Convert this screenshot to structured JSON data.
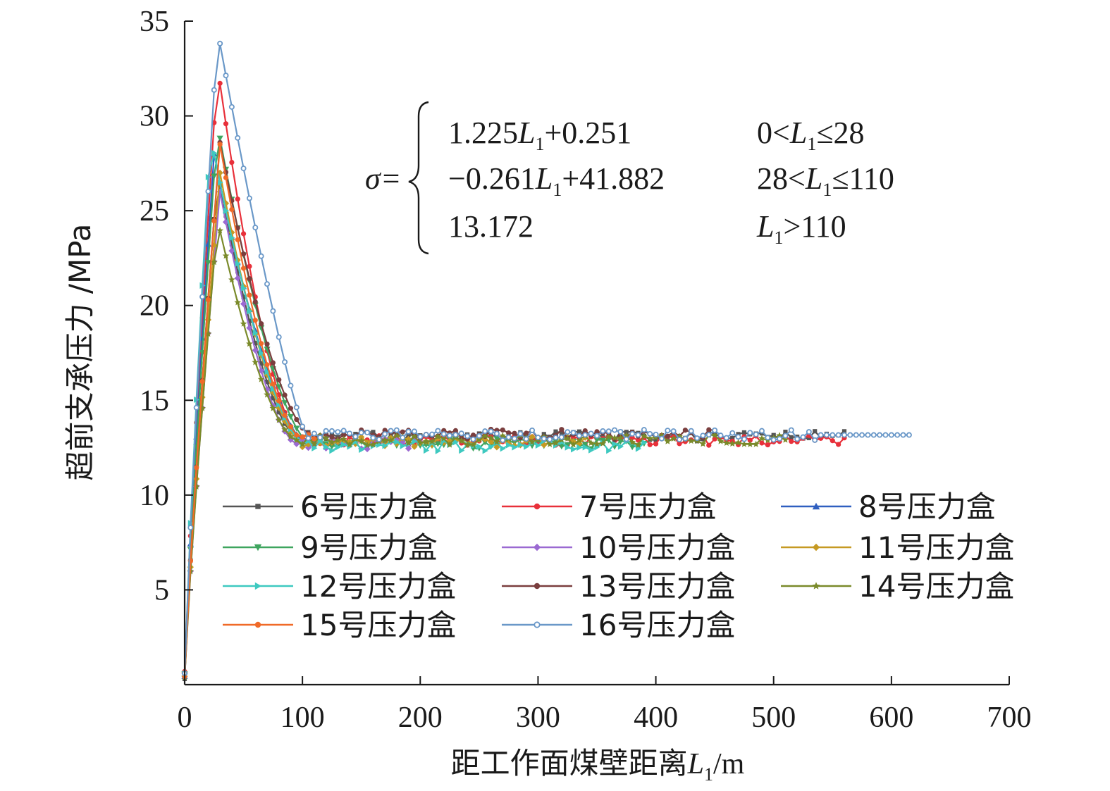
{
  "chart_data": {
    "type": "line",
    "xlabel": "距工作面煤壁距离L1/m",
    "xlabel_parts": {
      "main": "距工作面煤壁距离",
      "var": "L",
      "sub": "1",
      "unit": "/m"
    },
    "ylabel": "超前支承压力 /MPa",
    "xlim": [
      0,
      700
    ],
    "ylim": [
      0,
      35
    ],
    "xticks": [
      "0",
      "100",
      "200",
      "300",
      "400",
      "500",
      "600",
      "700"
    ],
    "yticks": [
      "5",
      "10",
      "15",
      "20",
      "25",
      "30",
      "35"
    ],
    "grid": false,
    "legend_placement": "bottom-center",
    "equation": {
      "lhs": "σ=",
      "rows": [
        {
          "expr_pre": "1.225",
          "expr_var": "L",
          "expr_sub": "1",
          "expr_post": "+0.251",
          "cond_pre": "0<",
          "cond_var": "L",
          "cond_sub": "1",
          "cond_post": "≤28"
        },
        {
          "expr_pre": "−0.261",
          "expr_var": "L",
          "expr_sub": "1",
          "expr_post": "+41.882",
          "cond_pre": "28<",
          "cond_var": "L",
          "cond_sub": "1",
          "cond_post": "≤110"
        },
        {
          "expr_pre": "13.172",
          "expr_var": "",
          "expr_sub": "",
          "expr_post": "",
          "cond_pre": "",
          "cond_var": "L",
          "cond_sub": "1",
          "cond_post": ">110"
        }
      ]
    },
    "series": [
      {
        "name": "6号压力盒",
        "color": "#555555",
        "marker": "square",
        "max_x": 560,
        "base": 13.1,
        "peak_x": 28,
        "peak_y": 27.0
      },
      {
        "name": "7号压力盒",
        "color": "#e8303a",
        "marker": "circle",
        "max_x": 560,
        "base": 12.9,
        "peak_x": 28,
        "peak_y": 32.6
      },
      {
        "name": "8号压力盒",
        "color": "#2f5fc0",
        "marker": "triangle-up",
        "max_x": 110,
        "base": 12.8,
        "peak_x": 25,
        "peak_y": 28.0
      },
      {
        "name": "9号压力盒",
        "color": "#3fa55f",
        "marker": "triangle-down",
        "max_x": 390,
        "base": 12.7,
        "peak_x": 28,
        "peak_y": 29.5
      },
      {
        "name": "10号压力盒",
        "color": "#9b6ad2",
        "marker": "diamond",
        "max_x": 200,
        "base": 12.7,
        "peak_x": 30,
        "peak_y": 26.0
      },
      {
        "name": "11号压力盒",
        "color": "#c69a23",
        "marker": "diamond",
        "max_x": 340,
        "base": 12.8,
        "peak_x": 30,
        "peak_y": 27.0
      },
      {
        "name": "12号压力盒",
        "color": "#3ec9c0",
        "marker": "triangle-right",
        "max_x": 390,
        "base": 12.6,
        "peak_x": 22,
        "peak_y": 29.0
      },
      {
        "name": "13号压力盒",
        "color": "#7a3e3e",
        "marker": "circle",
        "max_x": 450,
        "base": 13.2,
        "peak_x": 30,
        "peak_y": 28.6
      },
      {
        "name": "14号压力盒",
        "color": "#7a8a2a",
        "marker": "star",
        "max_x": 510,
        "base": 12.9,
        "peak_x": 28,
        "peak_y": 24.5
      },
      {
        "name": "15号压力盒",
        "color": "#f06a28",
        "marker": "circle",
        "max_x": 110,
        "base": 13.0,
        "peak_x": 30,
        "peak_y": 28.5
      },
      {
        "name": "16号压力盒",
        "color": "#6a98c8",
        "marker": "circle-open",
        "max_x": 615,
        "base": 13.17,
        "peak_x": 28,
        "peak_y": 34.5
      }
    ]
  }
}
